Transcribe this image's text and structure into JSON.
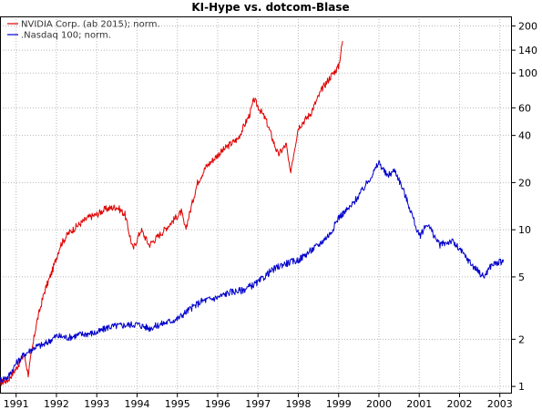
{
  "chart_data": {
    "type": "line",
    "title": "KI-Hype vs. dotcom-Blase",
    "xlabel": "",
    "ylabel": "",
    "yscale": "log",
    "xlim": [
      1990.6,
      2003.3
    ],
    "ylim": [
      0.9,
      230
    ],
    "grid": true,
    "legend_position": "top-left",
    "x_ticks": [
      1991,
      1992,
      1993,
      1994,
      1995,
      1996,
      1997,
      1998,
      1999,
      2000,
      2001,
      2002,
      2003
    ],
    "x_tick_labels": [
      "1991",
      "1992",
      "1993",
      "1994",
      "1995",
      "1996",
      "1997",
      "1998",
      "1999",
      "2000",
      "2001",
      "2002",
      "2003"
    ],
    "y_ticks": [
      1,
      2,
      5,
      10,
      20,
      40,
      60,
      100,
      140,
      200
    ],
    "y_tick_labels": [
      "1",
      "2",
      "5",
      "10",
      "20",
      "40",
      "60",
      "100",
      "140",
      "200"
    ],
    "series": [
      {
        "name": "NVIDIA Corp. (ab 2015); norm.",
        "color": "#e00000",
        "x": [
          1990.6,
          1990.8,
          1991.0,
          1991.2,
          1991.3,
          1991.5,
          1991.7,
          1991.9,
          1992.1,
          1992.3,
          1992.5,
          1992.8,
          1993.0,
          1993.2,
          1993.5,
          1993.7,
          1993.9,
          1994.1,
          1994.3,
          1994.6,
          1994.9,
          1995.1,
          1995.2,
          1995.5,
          1995.7,
          1996.0,
          1996.3,
          1996.5,
          1996.8,
          1996.9,
          1997.2,
          1997.5,
          1997.7,
          1997.8,
          1998.0,
          1998.3,
          1998.6,
          1998.8,
          1999.0,
          1999.1
        ],
        "y": [
          1.05,
          1.1,
          1.3,
          1.6,
          1.2,
          2.5,
          4.0,
          5.5,
          8.0,
          9.5,
          10.5,
          12.0,
          12.5,
          13.5,
          14.0,
          12.5,
          7.5,
          10.0,
          8.0,
          9.5,
          11.5,
          13.0,
          10.0,
          20.0,
          25.0,
          30.0,
          35.0,
          38.0,
          55.0,
          68.0,
          50.0,
          30.0,
          35.0,
          23.0,
          45.0,
          55.0,
          80.0,
          95.0,
          110.0,
          160.0
        ]
      },
      {
        "name": ".Nasdaq 100; norm.",
        "color": "#0000cc",
        "x": [
          1990.6,
          1990.8,
          1991.0,
          1991.2,
          1991.5,
          1991.7,
          1992.0,
          1992.3,
          1992.6,
          1993.0,
          1993.3,
          1993.6,
          1994.0,
          1994.3,
          1994.6,
          1995.0,
          1995.3,
          1995.6,
          1996.0,
          1996.3,
          1996.6,
          1997.0,
          1997.3,
          1997.6,
          1998.0,
          1998.2,
          1998.5,
          1998.8,
          1999.0,
          1999.3,
          1999.6,
          1999.9,
          2000.0,
          2000.2,
          2000.4,
          2000.6,
          2000.8,
          2001.0,
          2001.2,
          2001.5,
          2001.8,
          2002.0,
          2002.3,
          2002.6,
          2002.8,
          2003.0,
          2003.1
        ],
        "y": [
          1.1,
          1.15,
          1.4,
          1.6,
          1.8,
          1.85,
          2.1,
          2.05,
          2.15,
          2.2,
          2.4,
          2.45,
          2.5,
          2.35,
          2.5,
          2.7,
          3.1,
          3.5,
          3.7,
          4.0,
          4.1,
          4.6,
          5.4,
          6.0,
          6.4,
          7.0,
          8.0,
          9.5,
          12.0,
          14.0,
          18.0,
          24.0,
          27.0,
          22.0,
          24.0,
          18.0,
          13.0,
          9.0,
          11.0,
          8.0,
          8.5,
          7.5,
          6.0,
          5.0,
          6.0,
          6.2,
          6.4
        ]
      }
    ]
  }
}
